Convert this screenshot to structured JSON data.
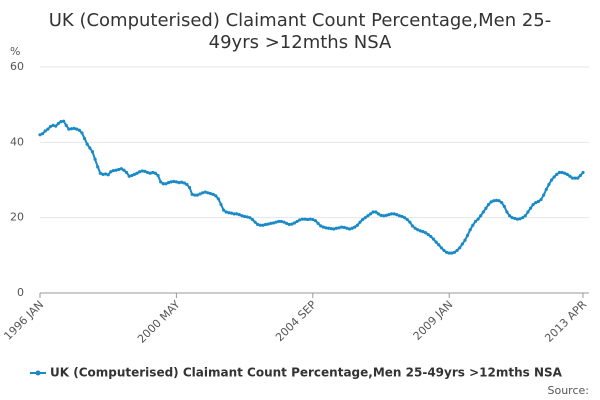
{
  "chart_data": {
    "type": "line",
    "title": "UK (Computerised) Claimant Count Percentage,Men 25-49yrs >12mths NSA",
    "y_unit": "%",
    "source": "Source:",
    "ylim": [
      0,
      60
    ],
    "yticks": [
      0,
      20,
      40,
      60
    ],
    "grid": true,
    "legend": "bottom",
    "categories": [
      "1996 JAN",
      null,
      null,
      null,
      null,
      null,
      null,
      null,
      null,
      null,
      null,
      null,
      null,
      null,
      null,
      null,
      null,
      null,
      null,
      null,
      null,
      null,
      null,
      null,
      null,
      null,
      null,
      null,
      null,
      null,
      null,
      null,
      null,
      null,
      null,
      null,
      null,
      null,
      null,
      null,
      null,
      null,
      null,
      null,
      null,
      null,
      null,
      null,
      null,
      null,
      null,
      null,
      "2000 MAY",
      null,
      null,
      null,
      null,
      null,
      null,
      null,
      null,
      null,
      null,
      null,
      null,
      null,
      null,
      null,
      null,
      null,
      null,
      null,
      null,
      null,
      null,
      null,
      null,
      null,
      null,
      null,
      null,
      null,
      null,
      null,
      null,
      null,
      null,
      null,
      null,
      null,
      null,
      null,
      null,
      null,
      null,
      null,
      null,
      null,
      null,
      null,
      null,
      null,
      null,
      null,
      "2004 SEP",
      null,
      null,
      null,
      null,
      null,
      null,
      null,
      null,
      null,
      null,
      null,
      null,
      null,
      null,
      null,
      null,
      null,
      null,
      null,
      null,
      null,
      null,
      null,
      null,
      null,
      null,
      null,
      null,
      null,
      null,
      null,
      null,
      null,
      null,
      null,
      null,
      null,
      null,
      null,
      null,
      null,
      null,
      null,
      null,
      null,
      null,
      null,
      null,
      null,
      null,
      null,
      "2009 JAN",
      null,
      null,
      null,
      null,
      null,
      null,
      null,
      null,
      null,
      null,
      null,
      null,
      null,
      null,
      null,
      null,
      null,
      null,
      null,
      null,
      null,
      null,
      null,
      null,
      null,
      null,
      null,
      null,
      null,
      null,
      null,
      null,
      null,
      null,
      null,
      null,
      null,
      null,
      null,
      null,
      null,
      null,
      null,
      null,
      null,
      null,
      null,
      null,
      null,
      null,
      "2013 APR"
    ],
    "series": [
      {
        "name": "UK (Computerised) Claimant Count Percentage,Men 25-49yrs >12mths NSA",
        "color": "#1a8ac6",
        "values": [
          42,
          42.3,
          43,
          43.5,
          44.2,
          44.5,
          44.3,
          45,
          45.5,
          45.6,
          44.5,
          43.5,
          43.6,
          43.7,
          43.5,
          43.2,
          42.5,
          41,
          39.5,
          38.5,
          37.5,
          35.5,
          33.5,
          31.8,
          31.5,
          31.6,
          31.4,
          32.2,
          32.5,
          32.6,
          32.8,
          33,
          32.6,
          32,
          31,
          31.2,
          31.5,
          31.8,
          32.2,
          32.4,
          32.3,
          32,
          31.8,
          32,
          31.8,
          31.2,
          29.5,
          29,
          29,
          29.3,
          29.5,
          29.6,
          29.5,
          29.3,
          29.4,
          29.2,
          28.8,
          28,
          26.2,
          26,
          26,
          26.3,
          26.6,
          26.8,
          26.6,
          26.4,
          26.2,
          25.8,
          25,
          23.5,
          22,
          21.5,
          21.3,
          21.2,
          21,
          21,
          20.8,
          20.5,
          20.3,
          20.2,
          20,
          19.5,
          18.8,
          18.2,
          18,
          18,
          18.2,
          18.3,
          18.5,
          18.6,
          18.8,
          19,
          19,
          18.8,
          18.5,
          18.2,
          18.3,
          18.6,
          19,
          19.4,
          19.6,
          19.6,
          19.5,
          19.6,
          19.5,
          19.2,
          18.5,
          17.8,
          17.5,
          17.3,
          17.2,
          17.1,
          17,
          17.2,
          17.3,
          17.5,
          17.4,
          17.2,
          17,
          17.2,
          17.5,
          18,
          18.8,
          19.5,
          20,
          20.5,
          21,
          21.5,
          21.5,
          21,
          20.6,
          20.5,
          20.6,
          20.8,
          21,
          21,
          20.8,
          20.5,
          20.3,
          20,
          19.5,
          18.8,
          17.8,
          17.2,
          16.8,
          16.5,
          16.3,
          16,
          15.5,
          15,
          14.3,
          13.5,
          12.8,
          12,
          11.3,
          10.8,
          10.6,
          10.6,
          10.8,
          11.3,
          12,
          13,
          14,
          15.3,
          16.8,
          18,
          19,
          19.6,
          20.5,
          21.5,
          22.5,
          23.5,
          24.2,
          24.5,
          24.6,
          24.5,
          24,
          23,
          21.5,
          20.5,
          20,
          19.8,
          19.6,
          19.7,
          20,
          20.5,
          21.5,
          22.5,
          23.5,
          24,
          24.3,
          24.8,
          26,
          27.5,
          28.8,
          30,
          30.8,
          31.5,
          32,
          32,
          31.8,
          31.5,
          31,
          30.5,
          30.5,
          30.5,
          31.2,
          32
        ]
      }
    ]
  }
}
